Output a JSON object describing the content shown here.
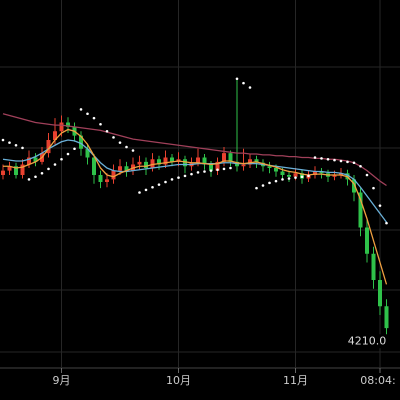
{
  "chart_data": {
    "type": "candlestick",
    "categories": [
      null,
      null,
      null,
      null,
      null,
      null,
      null,
      null,
      null,
      "9月",
      null,
      null,
      null,
      null,
      null,
      null,
      null,
      null,
      null,
      null,
      null,
      null,
      null,
      null,
      null,
      null,
      null,
      "10月",
      null,
      null,
      null,
      null,
      null,
      null,
      null,
      null,
      null,
      null,
      null,
      null,
      null,
      null,
      null,
      null,
      null,
      "11月",
      null,
      null,
      null,
      null,
      null,
      null,
      null,
      null,
      null,
      null,
      null,
      null,
      "08:04:",
      null
    ],
    "ohlc": [
      [
        4400,
        4412,
        4395,
        4405
      ],
      [
        4405,
        4415,
        4400,
        4410
      ],
      [
        4410,
        4414,
        4396,
        4400
      ],
      [
        4400,
        4418,
        4396,
        4412
      ],
      [
        4412,
        4428,
        4408,
        4420
      ],
      [
        4420,
        4425,
        4410,
        4415
      ],
      [
        4415,
        4432,
        4412,
        4425
      ],
      [
        4425,
        4448,
        4420,
        4440
      ],
      [
        4440,
        4465,
        4435,
        4450
      ],
      [
        4450,
        4468,
        4444,
        4460
      ],
      [
        4460,
        4466,
        4448,
        4455
      ],
      [
        4455,
        4460,
        4438,
        4445
      ],
      [
        4445,
        4450,
        4422,
        4430
      ],
      [
        4430,
        4436,
        4412,
        4420
      ],
      [
        4420,
        4424,
        4390,
        4400
      ],
      [
        4400,
        4405,
        4385,
        4392
      ],
      [
        4392,
        4402,
        4386,
        4395
      ],
      [
        4395,
        4412,
        4390,
        4405
      ],
      [
        4405,
        4418,
        4400,
        4410
      ],
      [
        4410,
        4415,
        4398,
        4405
      ],
      [
        4405,
        4420,
        4400,
        4412
      ],
      [
        4412,
        4422,
        4406,
        4415
      ],
      [
        4415,
        4420,
        4400,
        4408
      ],
      [
        4408,
        4425,
        4404,
        4418
      ],
      [
        4418,
        4422,
        4406,
        4412
      ],
      [
        4412,
        4428,
        4408,
        4420
      ],
      [
        4420,
        4424,
        4410,
        4415
      ],
      [
        4415,
        4426,
        4410,
        4418
      ],
      [
        4418,
        4422,
        4402,
        4410
      ],
      [
        4410,
        4420,
        4405,
        4414
      ],
      [
        4414,
        4430,
        4410,
        4420
      ],
      [
        4420,
        4424,
        4406,
        4412
      ],
      [
        4412,
        4416,
        4398,
        4405
      ],
      [
        4405,
        4420,
        4400,
        4415
      ],
      [
        4415,
        4432,
        4410,
        4425
      ],
      [
        4425,
        4428,
        4410,
        4415
      ],
      [
        4415,
        4509,
        4404,
        4410
      ],
      [
        4410,
        4430,
        4405,
        4412
      ],
      [
        4412,
        4424,
        4408,
        4418
      ],
      [
        4418,
        4422,
        4408,
        4414
      ],
      [
        4414,
        4418,
        4404,
        4410
      ],
      [
        4410,
        4415,
        4402,
        4408
      ],
      [
        4408,
        4412,
        4398,
        4404
      ],
      [
        4404,
        4408,
        4394,
        4400
      ],
      [
        4400,
        4405,
        4392,
        4398
      ],
      [
        4398,
        4408,
        4394,
        4402
      ],
      [
        4402,
        4406,
        4390,
        4396
      ],
      [
        4396,
        4405,
        4392,
        4400
      ],
      [
        4400,
        4410,
        4396,
        4404
      ],
      [
        4404,
        4408,
        4396,
        4402
      ],
      [
        4402,
        4406,
        4392,
        4398
      ],
      [
        4398,
        4405,
        4394,
        4400
      ],
      [
        4400,
        4408,
        4396,
        4402
      ],
      [
        4402,
        4406,
        4388,
        4395
      ],
      [
        4395,
        4400,
        4370,
        4380
      ],
      [
        4380,
        4385,
        4330,
        4340
      ],
      [
        4340,
        4350,
        4300,
        4310
      ],
      [
        4310,
        4318,
        4270,
        4280
      ],
      [
        4280,
        4290,
        4240,
        4250
      ],
      [
        4250,
        4258,
        4215,
        4225
      ]
    ],
    "up_color": "#e8412f",
    "down_color": "#2fc24a",
    "lines": [
      {
        "color": "#a0405a",
        "values": [
          4470,
          4468,
          4466,
          4464,
          4462,
          4460,
          4459,
          4458,
          4457,
          4457,
          4456,
          4455,
          4454,
          4453,
          4452,
          4451,
          4449,
          4447,
          4445,
          4443,
          4441,
          4440,
          4439,
          4438,
          4437,
          4436,
          4435,
          4434,
          4433,
          4432,
          4431,
          4430,
          4429,
          4428,
          4427,
          4426,
          4425,
          4425,
          4424,
          4424,
          4423,
          4423,
          4422,
          4422,
          4421,
          4421,
          4420,
          4420,
          4419,
          4419,
          4418,
          4418,
          4417,
          4416,
          4414,
          4410,
          4405,
          4399,
          4393,
          4388
        ]
      },
      {
        "color": "#6ab0d8",
        "values": [
          4418,
          4417,
          4416,
          4416,
          4418,
          4421,
          4425,
          4430,
          4434,
          4438,
          4440,
          4439,
          4436,
          4430,
          4422,
          4414,
          4408,
          4405,
          4404,
          4404,
          4405,
          4406,
          4407,
          4408,
          4409,
          4410,
          4411,
          4412,
          4412,
          4412,
          4413,
          4413,
          4413,
          4413,
          4414,
          4414,
          4413,
          4413,
          4413,
          4413,
          4412,
          4411,
          4410,
          4409,
          4408,
          4407,
          4406,
          4405,
          4404,
          4404,
          4403,
          4403,
          4402,
          4400,
          4395,
          4386,
          4376,
          4366,
          4356,
          4346
        ]
      },
      {
        "color": "#f0a040",
        "values": [
          4410,
          4410,
          4408,
          4409,
          4412,
          4415,
          4420,
          4430,
          4440,
          4448,
          4452,
          4450,
          4444,
          4435,
          4422,
          4408,
          4400,
          4398,
          4402,
          4405,
          4408,
          4410,
          4410,
          4412,
          4413,
          4414,
          4415,
          4416,
          4415,
          4414,
          4414,
          4413,
          4412,
          4413,
          4416,
          4416,
          4414,
          4413,
          4414,
          4415,
          4413,
          4411,
          4409,
          4406,
          4404,
          4403,
          4401,
          4400,
          4401,
          4401,
          4400,
          4400,
          4400,
          4398,
          4390,
          4372,
          4350,
          4325,
          4300,
          4275
        ]
      }
    ],
    "sar": {
      "color": "#ffffff",
      "values": [
        4440,
        4437,
        4434,
        4431,
        4395,
        4398,
        4402,
        4407,
        4412,
        4418,
        4424,
        4430,
        4475,
        4470,
        4465,
        4458,
        4450,
        4443,
        4437,
        4432,
        4428,
        4380,
        4383,
        4386,
        4389,
        4392,
        4395,
        4397,
        4399,
        4401,
        4403,
        4404,
        4405,
        4406,
        4407,
        4408,
        4510,
        4505,
        4500,
        4385,
        4388,
        4391,
        4393,
        4395,
        4396,
        4397,
        4398,
        4399,
        4420,
        4419,
        4418,
        4417,
        4416,
        4415,
        4414,
        4410,
        4400,
        4385,
        4365,
        4345
      ]
    },
    "price_label": {
      "value": 4210,
      "label": "4210.0"
    },
    "ylim": [
      4200,
      4600
    ]
  }
}
